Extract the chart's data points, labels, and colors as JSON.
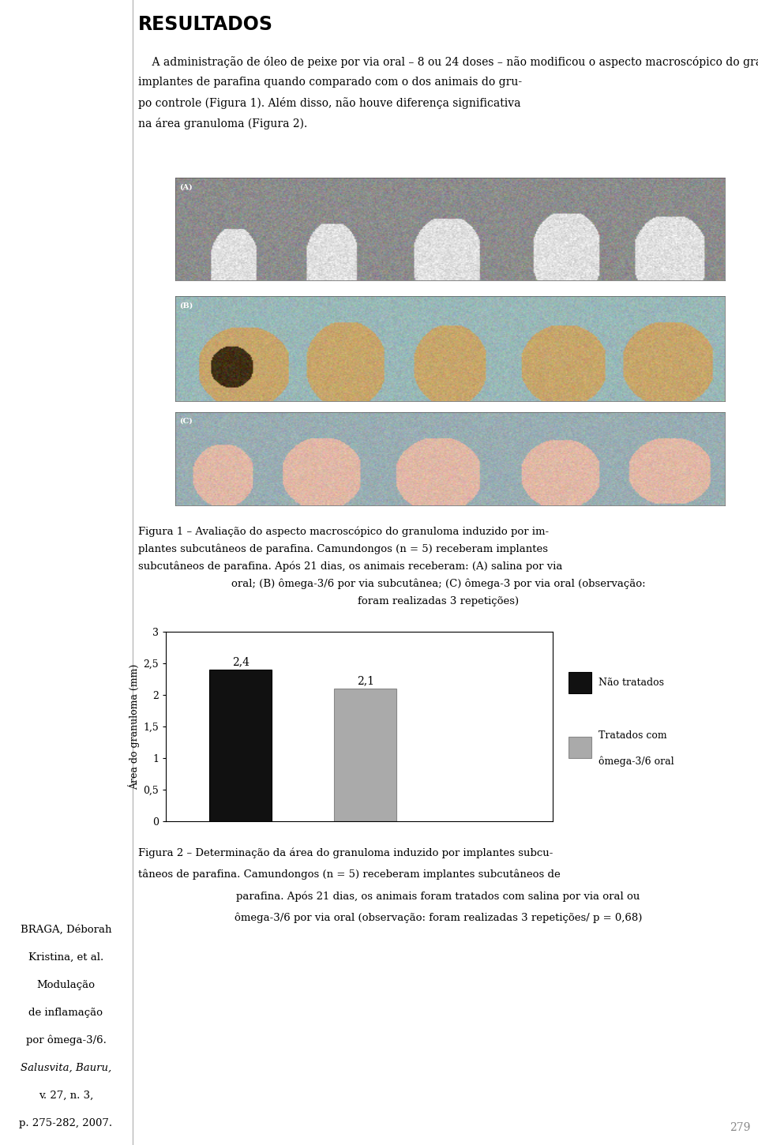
{
  "page_bg": "#ffffff",
  "left_text_lines": [
    [
      "BRAGA, Déborah",
      "normal"
    ],
    [
      "Kristina, et al.",
      "normal"
    ],
    [
      "Modulação",
      "normal"
    ],
    [
      "de inflamação",
      "normal"
    ],
    [
      "por ômega-3/6.",
      "normal"
    ],
    [
      "Salusvita, Bauru,",
      "italic"
    ],
    [
      "v. 27, n. 3,",
      "normal"
    ],
    [
      "p. 275-282, 2007.",
      "normal"
    ]
  ],
  "title": "RESULTADOS",
  "title_fontsize": 17,
  "paragraph_lines": [
    "    A administração de óleo de peixe por via oral – 8 ou 24 doses – não modificou o aspecto macroscópico do granuloma induzido por",
    "implantes de parafina quando comparado com o dos animais do gru-",
    "po controle (Figura 1). Além disso, não houve diferença significativa",
    "na área granuloma (Figura 2)."
  ],
  "fig1_caption_lines": [
    [
      "Figura 1 – Avaliação do aspecto macroscópico do granuloma induzido por im-",
      "left"
    ],
    [
      "plantes subcutâneos de parafina. Camundongos (n = 5) receberam implantes",
      "left"
    ],
    [
      "subcutâneos de parafina. Após 21 dias, os animais receberam: (A) salina por via",
      "left"
    ],
    [
      "oral; (B) ômega-3/6 por via subcutânea; (C) ômega-3 por via oral (observação:",
      "center"
    ],
    [
      "foram realizadas 3 repetições)",
      "center"
    ]
  ],
  "bar_values": [
    2.4,
    2.1
  ],
  "bar_labels": [
    "2,4",
    "2,1"
  ],
  "bar_colors": [
    "#111111",
    "#aaaaaa"
  ],
  "bar_edge_colors": [
    "#000000",
    "#888888"
  ],
  "bar_positions": [
    1,
    2
  ],
  "bar_width": 0.5,
  "xlim": [
    0.4,
    3.5
  ],
  "ylim": [
    0,
    3
  ],
  "yticks": [
    0,
    0.5,
    1.0,
    1.5,
    2.0,
    2.5,
    3.0
  ],
  "ytick_labels": [
    "0",
    "0,5",
    "1",
    "1,5",
    "2",
    "2,5",
    "3"
  ],
  "ylabel": "Área do granuloma (mm)",
  "legend_labels": [
    "Não tratados",
    "Tratados com\nômega-3/6 oral"
  ],
  "legend_colors": [
    "#111111",
    "#aaaaaa"
  ],
  "fig2_caption_lines": [
    [
      "Figura 2 – Determinação da área do granuloma induzido por implantes subcu-",
      "left"
    ],
    [
      "tâneos de parafina. Camundongos (n = 5) receberam implantes subcutâneos de",
      "left"
    ],
    [
      "parafina. Após 21 dias, os animais foram tratados com salina por via oral ou",
      "center"
    ],
    [
      "ômega-3/6 por via oral (observação: foram realizadas 3 repetições/ p = 0,68)",
      "center"
    ]
  ],
  "page_number": "279",
  "font_size_body": 10,
  "font_size_caption": 9.5,
  "font_size_left": 9.5
}
